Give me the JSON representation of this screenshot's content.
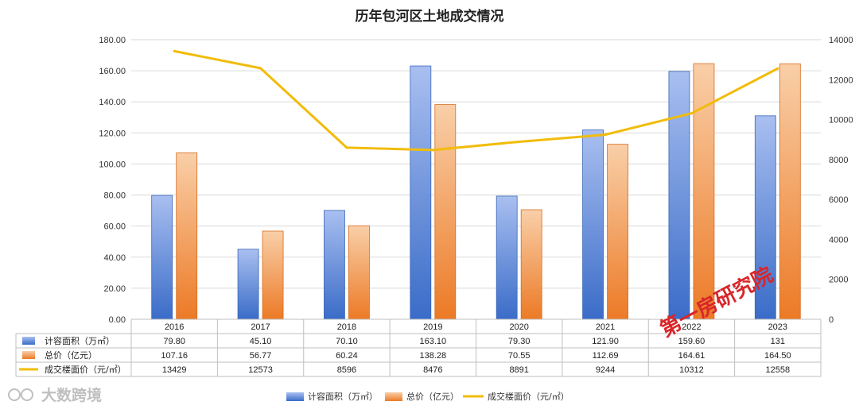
{
  "chart_data": {
    "type": "bar",
    "title": "历年包河区土地成交情况",
    "categories": [
      "2016",
      "2017",
      "2018",
      "2019",
      "2020",
      "2021",
      "2022",
      "2023"
    ],
    "series": [
      {
        "name": "计容面积（万㎡）",
        "type": "bar",
        "axis": "left",
        "color": "#4472c4",
        "values": [
          79.8,
          45.1,
          70.1,
          163.1,
          79.3,
          121.9,
          159.6,
          131
        ],
        "labels": [
          "79.80",
          "45.10",
          "70.10",
          "163.10",
          "79.30",
          "121.90",
          "159.60",
          "131"
        ]
      },
      {
        "name": "总价（亿元）",
        "type": "bar",
        "axis": "left",
        "color": "#ed7d31",
        "values": [
          107.16,
          56.77,
          60.24,
          138.28,
          70.55,
          112.69,
          164.61,
          164.5
        ],
        "labels": [
          "107.16",
          "56.77",
          "60.24",
          "138.28",
          "70.55",
          "112.69",
          "164.61",
          "164.50"
        ]
      },
      {
        "name": "成交楼面价（元/㎡）",
        "type": "line",
        "axis": "right",
        "color": "#f2bc0b",
        "values": [
          13429,
          12573,
          8596,
          8476,
          8891,
          9244,
          10312,
          12558
        ],
        "labels": [
          "13429",
          "12573",
          "8596",
          "8476",
          "8891",
          "9244",
          "10312",
          "12558"
        ]
      }
    ],
    "y_left": {
      "min": 0,
      "max": 180,
      "step": 20,
      "ticks": [
        "0.00",
        "20.00",
        "40.00",
        "60.00",
        "80.00",
        "100.00",
        "120.00",
        "140.00",
        "160.00",
        "180.00"
      ]
    },
    "y_right": {
      "min": 0,
      "max": 14000,
      "step": 2000,
      "ticks": [
        "0",
        "2000",
        "4000",
        "6000",
        "8000",
        "10000",
        "12000",
        "14000"
      ]
    },
    "grid": true,
    "legend": "bottom",
    "data_table": true
  },
  "watermark_stamp": "第一房研究院",
  "brand_mark": "大数跨境",
  "colors": {
    "bar1": "#4472c4",
    "bar2": "#ed7d31",
    "line": "#f2bc0b",
    "grid": "#d9d9d9"
  }
}
